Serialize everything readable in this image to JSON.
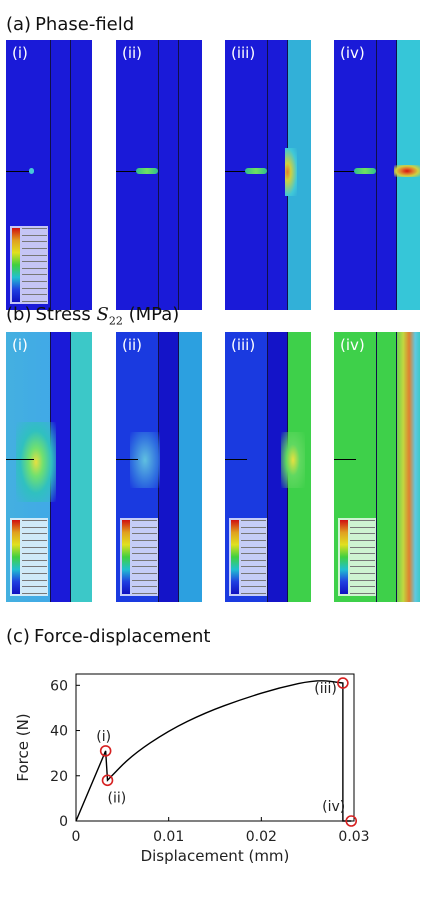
{
  "sections": {
    "a": {
      "letter": "(a)",
      "label": "Phase-field"
    },
    "b": {
      "letter": "(b)",
      "label_pre": "Stress ",
      "label_sym": "S",
      "label_sub": "22",
      "label_post": " (MPa)"
    },
    "c": {
      "letter": "(c)",
      "label": "Force-displacement"
    }
  },
  "panel_tags": [
    "(i)",
    "(ii)",
    "(iii)",
    "(iv)"
  ],
  "colors": {
    "field_blue": "#1a1ad8",
    "field_cyan": "#2cc6c0",
    "field_green": "#3ed04a",
    "field_teal": "#32b0d8",
    "crack_green": "#3ec8a8",
    "crack_red": "#d81010",
    "marker": "#d62020"
  },
  "chart_data": {
    "type": "line",
    "title": "",
    "xlabel": "Displacement (mm)",
    "ylabel": "Force (N)",
    "xlim": [
      0,
      0.03
    ],
    "ylim": [
      0,
      65
    ],
    "xticks": [
      0,
      0.01,
      0.02,
      0.03
    ],
    "xtick_labels": [
      "0",
      "0.01",
      "0.02",
      "0.03"
    ],
    "yticks": [
      0,
      20,
      40,
      60
    ],
    "ytick_labels": [
      "0",
      "20",
      "40",
      "60"
    ],
    "grid": false,
    "series": [
      {
        "x": [
          0,
          0.0032,
          0.0034,
          0.006,
          0.01,
          0.014,
          0.018,
          0.022,
          0.026,
          0.0288,
          0.0288,
          0.0297
        ],
        "y": [
          0,
          31,
          18,
          29,
          40,
          48,
          54,
          59,
          62.5,
          61,
          0,
          0
        ]
      }
    ],
    "markers": [
      {
        "label": "(i)",
        "x": 0.0032,
        "y": 31
      },
      {
        "label": "(ii)",
        "x": 0.0034,
        "y": 18
      },
      {
        "label": "(iii)",
        "x": 0.0288,
        "y": 61
      },
      {
        "label": "(iv)",
        "x": 0.0297,
        "y": 0
      }
    ]
  }
}
